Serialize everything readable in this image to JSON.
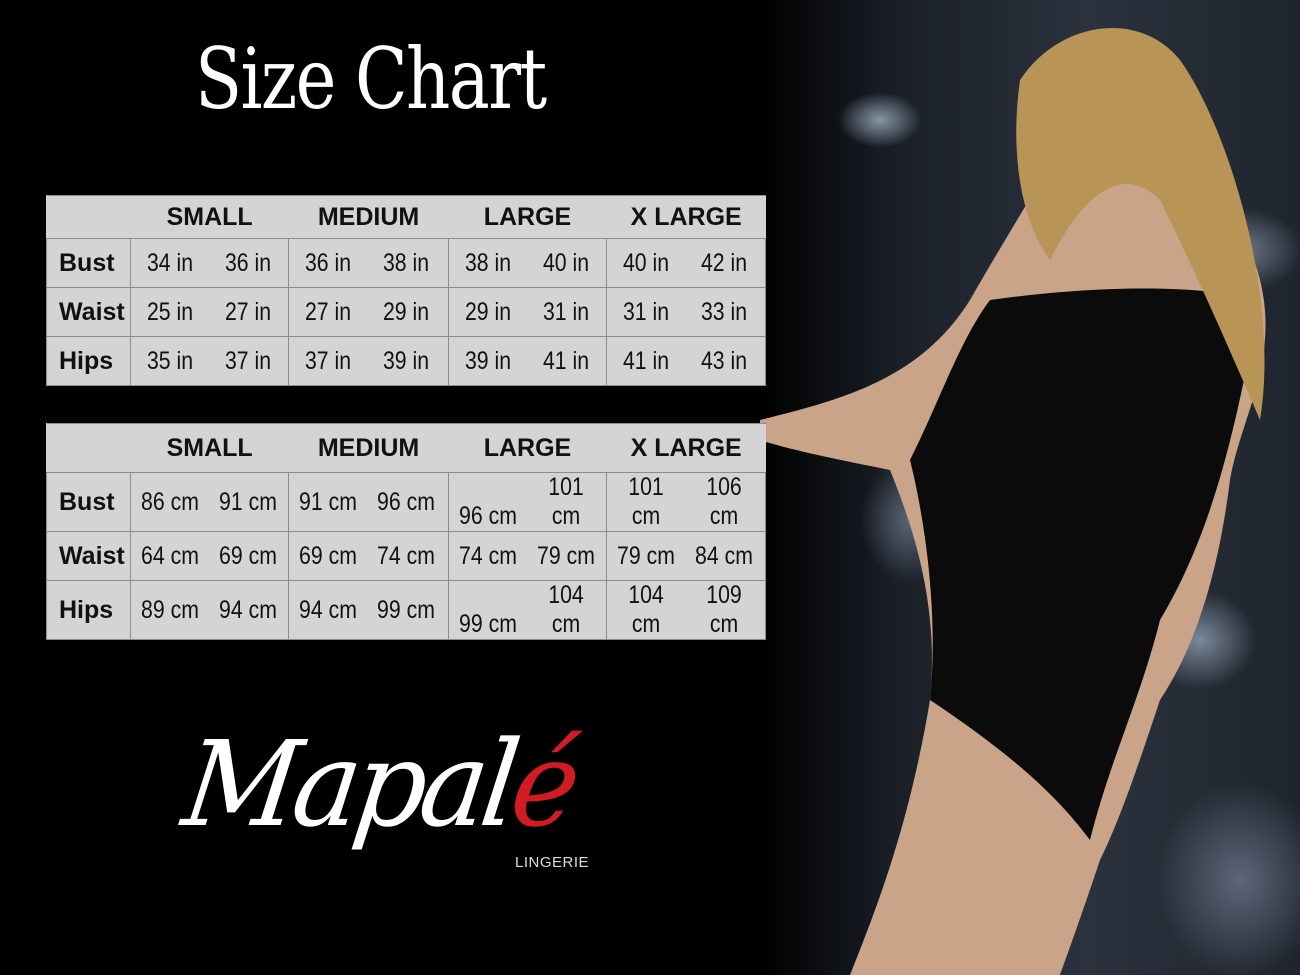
{
  "title": "Size Chart",
  "colors": {
    "background": "#000000",
    "table_bg": "#d4d4d4",
    "accent": "#d21c24"
  },
  "tables": [
    {
      "headers": [
        "SMALL",
        "MEDIUM",
        "LARGE",
        "X LARGE"
      ],
      "rows": [
        {
          "label": "Bust",
          "values": [
            "34 in",
            "36 in",
            "36 in",
            "38 in",
            "38 in",
            "40 in",
            "40 in",
            "42 in"
          ]
        },
        {
          "label": "Waist",
          "values": [
            "25 in",
            "27 in",
            "27 in",
            "29 in",
            "29 in",
            "31 in",
            "31 in",
            "33 in"
          ]
        },
        {
          "label": "Hips",
          "values": [
            "35 in",
            "37 in",
            "37 in",
            "39 in",
            "39 in",
            "41 in",
            "41 in",
            "43 in"
          ]
        }
      ]
    },
    {
      "headers": [
        "SMALL",
        "MEDIUM",
        "LARGE",
        "X LARGE"
      ],
      "rows": [
        {
          "label": "Bust",
          "values": [
            "86 cm",
            "91 cm",
            "91 cm",
            "96 cm",
            "96 cm",
            "101 cm",
            "101 cm",
            "106 cm"
          ]
        },
        {
          "label": "Waist",
          "values": [
            "64 cm",
            "69 cm",
            "69 cm",
            "74 cm",
            "74 cm",
            "79  cm",
            "79 cm",
            "84 cm"
          ]
        },
        {
          "label": "Hips",
          "values": [
            "89 cm",
            "94 cm",
            "94 cm",
            "99 cm",
            "99 cm",
            "104 cm",
            "104 cm",
            "109 cm"
          ]
        }
      ]
    }
  ],
  "logo": {
    "main": "Mapal",
    "accent": "é",
    "sub": "LINGERIE"
  }
}
